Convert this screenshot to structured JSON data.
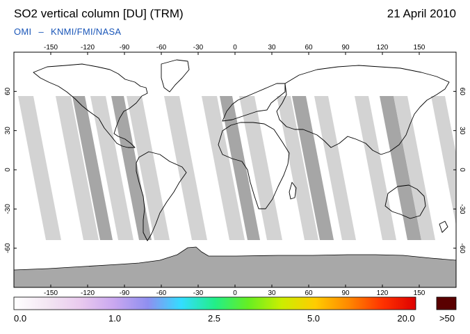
{
  "header": {
    "title": "SO2 vertical column [DU] (TRM)",
    "date": "21 April 2010",
    "credit_left": "OMI",
    "credit_sep": "–",
    "credit_right": "KNMI/FMI/NASA"
  },
  "map": {
    "projection": "equirectangular",
    "lon_ticks": [
      "-150",
      "-120",
      "-90",
      "-60",
      "-30",
      "0",
      "30",
      "60",
      "90",
      "120",
      "150"
    ],
    "lat_ticks_left": [
      "60",
      "30",
      "0",
      "-30",
      "-60"
    ],
    "lat_ticks_right": [
      "60",
      "30",
      "0",
      "-30",
      "-60"
    ],
    "colors": {
      "background": "#ffffff",
      "swath_light": "#d3d3d3",
      "swath_dark": "#a6a6a6",
      "antarctica": "#a8a8a8",
      "coastline": "#000000"
    }
  },
  "colorbar": {
    "labels": [
      "0.0",
      "1.0",
      "2.5",
      "5.0",
      "20.0",
      ">50"
    ],
    "gradient": [
      "#ffffff",
      "#f3e6f3",
      "#e9c9ee",
      "#c9a7f0",
      "#8f8ff0",
      "#33ddff",
      "#22ee88",
      "#66ee22",
      "#ccee00",
      "#ffcc00",
      "#ff8800",
      "#ff3300",
      "#dd0000"
    ],
    "max_color": "#5a0000"
  }
}
